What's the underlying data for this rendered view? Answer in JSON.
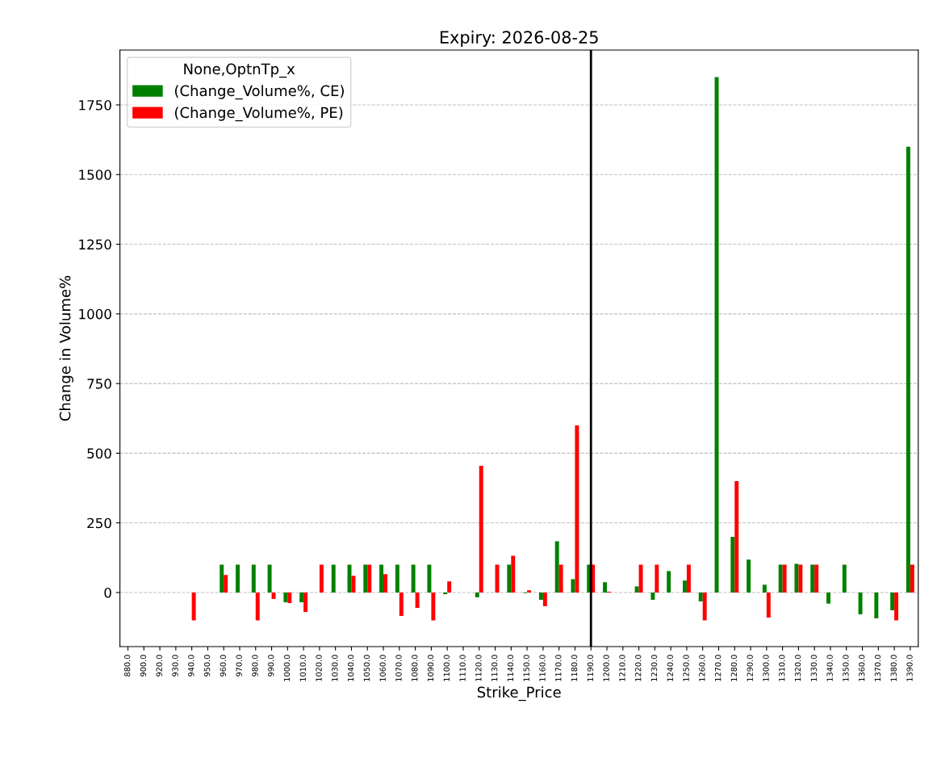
{
  "chart_data": {
    "type": "bar",
    "title": "Expiry: 2026-08-25",
    "xlabel": "Strike_Price",
    "ylabel": "Change in Volume%",
    "legend_title": "None,OptnTp_x",
    "categories": [
      "880.0",
      "900.0",
      "920.0",
      "930.0",
      "940.0",
      "950.0",
      "960.0",
      "970.0",
      "980.0",
      "990.0",
      "1000.0",
      "1010.0",
      "1020.0",
      "1030.0",
      "1040.0",
      "1050.0",
      "1060.0",
      "1070.0",
      "1080.0",
      "1090.0",
      "1100.0",
      "1110.0",
      "1120.0",
      "1130.0",
      "1140.0",
      "1150.0",
      "1160.0",
      "1170.0",
      "1180.0",
      "1190.0",
      "1200.0",
      "1210.0",
      "1220.0",
      "1230.0",
      "1240.0",
      "1250.0",
      "1260.0",
      "1270.0",
      "1280.0",
      "1290.0",
      "1300.0",
      "1310.0",
      "1320.0",
      "1330.0",
      "1340.0",
      "1350.0",
      "1360.0",
      "1370.0",
      "1380.0",
      "1390.0"
    ],
    "series": [
      {
        "name": "(Change_Volume%, CE)",
        "color": "#008000",
        "values": [
          null,
          null,
          null,
          null,
          null,
          null,
          100,
          100,
          100,
          100,
          -35,
          -35,
          null,
          100,
          100,
          100,
          100,
          100,
          100,
          100,
          -6,
          null,
          -17,
          null,
          100,
          -2,
          -26,
          184,
          48,
          100,
          37,
          null,
          22,
          -26,
          77,
          43,
          -32,
          1850,
          200,
          118,
          28,
          100,
          103,
          100,
          -40,
          100,
          -78,
          -93,
          -64,
          1600
        ]
      },
      {
        "name": "(Change_Volume%, PE)",
        "color": "#ff0000",
        "values": [
          null,
          null,
          null,
          null,
          -100,
          null,
          63,
          null,
          -100,
          -23,
          -38,
          -70,
          100,
          null,
          60,
          100,
          66,
          -84,
          -55,
          -100,
          40,
          null,
          455,
          100,
          132,
          8,
          -49,
          100,
          600,
          100,
          3,
          null,
          100,
          100,
          null,
          100,
          -100,
          null,
          400,
          null,
          -90,
          100,
          100,
          100,
          null,
          null,
          null,
          null,
          -100,
          100
        ]
      }
    ],
    "ylim": [
      -194,
      1947
    ],
    "yticks": [
      0,
      250,
      500,
      750,
      1000,
      1250,
      1500,
      1750
    ],
    "grid": "y",
    "legend": "top left",
    "ref_lines": [
      {
        "axis": "x",
        "value": "1190.0",
        "color": "#000000"
      }
    ]
  }
}
